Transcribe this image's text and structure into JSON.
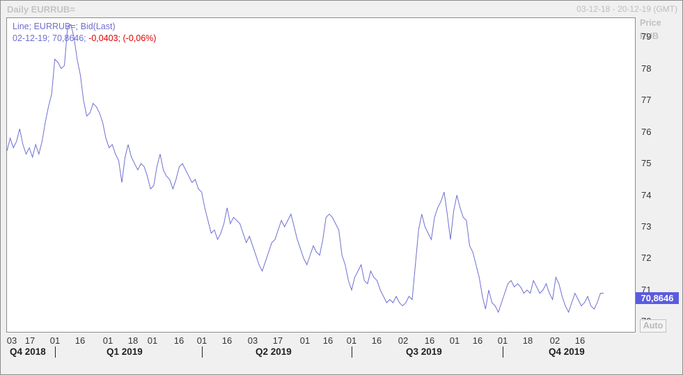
{
  "header": {
    "title": "Daily EURRUB=",
    "date_range": "03-12-18 - 20-12-19 (GMT)"
  },
  "legend": {
    "line1": "Line; EURRUB=; Bid(Last)",
    "line2_date": "02-12-19;",
    "line2_value": "70,8646;",
    "line2_change": "-0,0403;",
    "line2_change_pct": "(-0,06%)"
  },
  "y_axis": {
    "title_line1": "Price",
    "title_line2": "RUB",
    "ticks": [
      "79",
      "78",
      "77",
      "76",
      "75",
      "74",
      "73",
      "72",
      "71",
      "70"
    ]
  },
  "last_value_badge": "70,8646",
  "auto_button": "Auto",
  "x_axis": {
    "ticks": [
      "03",
      "17",
      "01",
      "16",
      "01",
      "18",
      "01",
      "16",
      "01",
      "16",
      "03",
      "17",
      "01",
      "16",
      "01",
      "16",
      "02",
      "16",
      "01",
      "16",
      "01",
      "18",
      "02",
      "16"
    ],
    "quarters": [
      "Q4 2018",
      "Q1 2019",
      "Q2 2019",
      "Q3 2019",
      "Q4 2019"
    ]
  },
  "colors": {
    "series_line": "#6d6fd0",
    "negative_change": "#e00000",
    "badge_bg": "#5b5be0"
  },
  "chart_data": {
    "type": "line",
    "series": [
      {
        "name": "EURRUB=",
        "values": [
          75.4,
          75.8,
          75.5,
          75.7,
          76.1,
          75.6,
          75.3,
          75.5,
          75.2,
          75.6,
          75.3,
          75.7,
          76.3,
          76.8,
          77.2,
          78.3,
          78.2,
          78.0,
          78.1,
          79.3,
          79.4,
          79.0,
          78.3,
          77.8,
          77.0,
          76.5,
          76.6,
          76.9,
          76.8,
          76.6,
          76.3,
          75.8,
          75.5,
          75.6,
          75.3,
          75.1,
          74.4,
          75.2,
          75.6,
          75.2,
          75.0,
          74.8,
          75.0,
          74.9,
          74.6,
          74.2,
          74.3,
          74.9,
          75.3,
          74.8,
          74.6,
          74.5,
          74.2,
          74.5,
          74.9,
          75.0,
          74.8,
          74.6,
          74.4,
          74.5,
          74.2,
          74.1,
          73.6,
          73.2,
          72.8,
          72.9,
          72.6,
          72.8,
          73.1,
          73.6,
          73.1,
          73.3,
          73.2,
          73.1,
          72.8,
          72.5,
          72.7,
          72.4,
          72.1,
          71.8,
          71.6,
          71.9,
          72.2,
          72.5,
          72.6,
          72.9,
          73.2,
          73.0,
          73.2,
          73.4,
          73.0,
          72.6,
          72.3,
          72.0,
          71.8,
          72.1,
          72.4,
          72.2,
          72.1,
          72.6,
          73.3,
          73.4,
          73.3,
          73.1,
          72.9,
          72.1,
          71.8,
          71.3,
          71.0,
          71.4,
          71.6,
          71.8,
          71.3,
          71.2,
          71.6,
          71.4,
          71.3,
          71.0,
          70.8,
          70.6,
          70.7,
          70.6,
          70.8,
          70.6,
          70.5,
          70.6,
          70.8,
          70.7,
          71.8,
          72.9,
          73.4,
          73.0,
          72.8,
          72.6,
          73.3,
          73.6,
          73.8,
          74.1,
          73.4,
          72.6,
          73.5,
          74.0,
          73.6,
          73.3,
          73.2,
          72.4,
          72.2,
          71.8,
          71.4,
          70.8,
          70.4,
          71.0,
          70.6,
          70.5,
          70.3,
          70.6,
          70.9,
          71.2,
          71.3,
          71.1,
          71.2,
          71.1,
          70.9,
          71.0,
          70.9,
          71.3,
          71.1,
          70.9,
          71.0,
          71.2,
          70.9,
          70.7,
          71.4,
          71.2,
          70.8,
          70.5,
          70.3,
          70.6,
          70.9,
          70.7,
          70.5,
          70.6,
          70.8,
          70.5,
          70.4,
          70.6,
          70.9,
          70.9
        ],
        "x_start": "2018-12-03",
        "x_end": "2019-12-02"
      }
    ],
    "title": "Daily EURRUB=",
    "ylabel": "Price RUB",
    "xlabel": "",
    "ylim": [
      69.7,
      79.6
    ],
    "grid": false,
    "legend_placement": "top-left"
  }
}
